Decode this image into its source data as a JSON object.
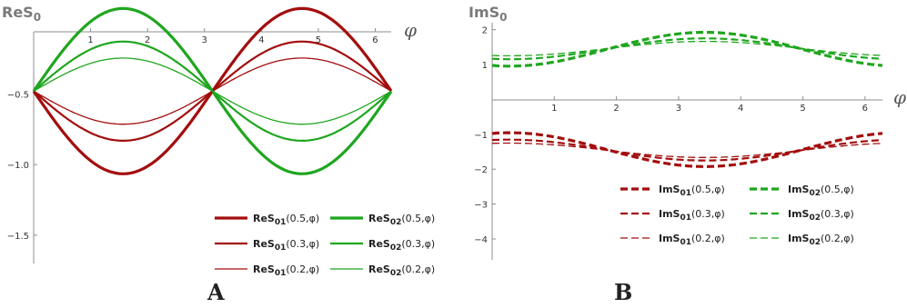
{
  "colors": {
    "s01": "#a30d0d",
    "s02": "#1fa61f",
    "axis": "#8c8c8c"
  },
  "chart_data": [
    {
      "type": "line",
      "panel_letter": "A",
      "title_main": "ReS",
      "title_sub": "0",
      "xlabel": "φ",
      "xlim": [
        0,
        6.28
      ],
      "ylim": [
        -1.7,
        -0.06
      ],
      "x_ticks": [
        1,
        2,
        3,
        4,
        5,
        6
      ],
      "y_ticks": [
        -0.5,
        -1.0,
        -1.5
      ],
      "y_tick_labels": [
        "−0.5",
        "−1.0",
        "−1.5"
      ],
      "line_style": "solid",
      "series": [
        {
          "name_main": "ReS",
          "name_sub": "01",
          "args": "(0.5,φ)",
          "a": 0.5,
          "sign": -1,
          "key": "s01",
          "width": 3.2
        },
        {
          "name_main": "ReS",
          "name_sub": "02",
          "args": "(0.5,φ)",
          "a": 0.5,
          "sign": 1,
          "key": "s02",
          "width": 3.2
        },
        {
          "name_main": "ReS",
          "name_sub": "01",
          "args": "(0.3,φ)",
          "a": 0.3,
          "sign": -1,
          "key": "s01",
          "width": 2.2
        },
        {
          "name_main": "ReS",
          "name_sub": "02",
          "args": "(0.3,φ)",
          "a": 0.3,
          "sign": 1,
          "key": "s02",
          "width": 2.2
        },
        {
          "name_main": "ReS",
          "name_sub": "01",
          "args": "(0.2,φ)",
          "a": 0.2,
          "sign": -1,
          "key": "s01",
          "width": 1.3
        },
        {
          "name_main": "ReS",
          "name_sub": "02",
          "args": "(0.2,φ)",
          "a": 0.2,
          "sign": 1,
          "key": "s02",
          "width": 1.3
        }
      ]
    },
    {
      "type": "line",
      "panel_letter": "B",
      "title_main": "ImS",
      "title_sub": "0",
      "xlabel": "φ",
      "xlim": [
        0,
        6.28
      ],
      "ylim": [
        -4.6,
        2.2
      ],
      "x_ticks": [
        1,
        2,
        3,
        4,
        5,
        6
      ],
      "y_ticks": [
        2,
        1,
        -1,
        -2,
        -3,
        -4
      ],
      "y_tick_labels": [
        "2",
        "1",
        "−1",
        "−2",
        "−3",
        "−4"
      ],
      "line_style": "dashed",
      "series": [
        {
          "name_main": "ImS",
          "name_sub": "01",
          "args": "(0.5,φ)",
          "a": 0.5,
          "sign": -1,
          "key": "s01",
          "width": 3.2
        },
        {
          "name_main": "ImS",
          "name_sub": "02",
          "args": "(0.5,φ)",
          "a": 0.5,
          "sign": 1,
          "key": "s02",
          "width": 3.2
        },
        {
          "name_main": "ImS",
          "name_sub": "01",
          "args": "(0.3,φ)",
          "a": 0.3,
          "sign": -1,
          "key": "s01",
          "width": 2.2
        },
        {
          "name_main": "ImS",
          "name_sub": "02",
          "args": "(0.3,φ)",
          "a": 0.3,
          "sign": 1,
          "key": "s02",
          "width": 2.2
        },
        {
          "name_main": "ImS",
          "name_sub": "01",
          "args": "(0.2,φ)",
          "a": 0.2,
          "sign": -1,
          "key": "s01",
          "width": 1.3
        },
        {
          "name_main": "ImS",
          "name_sub": "02",
          "args": "(0.2,φ)",
          "a": 0.2,
          "sign": 1,
          "key": "s02",
          "width": 1.3
        }
      ]
    }
  ]
}
